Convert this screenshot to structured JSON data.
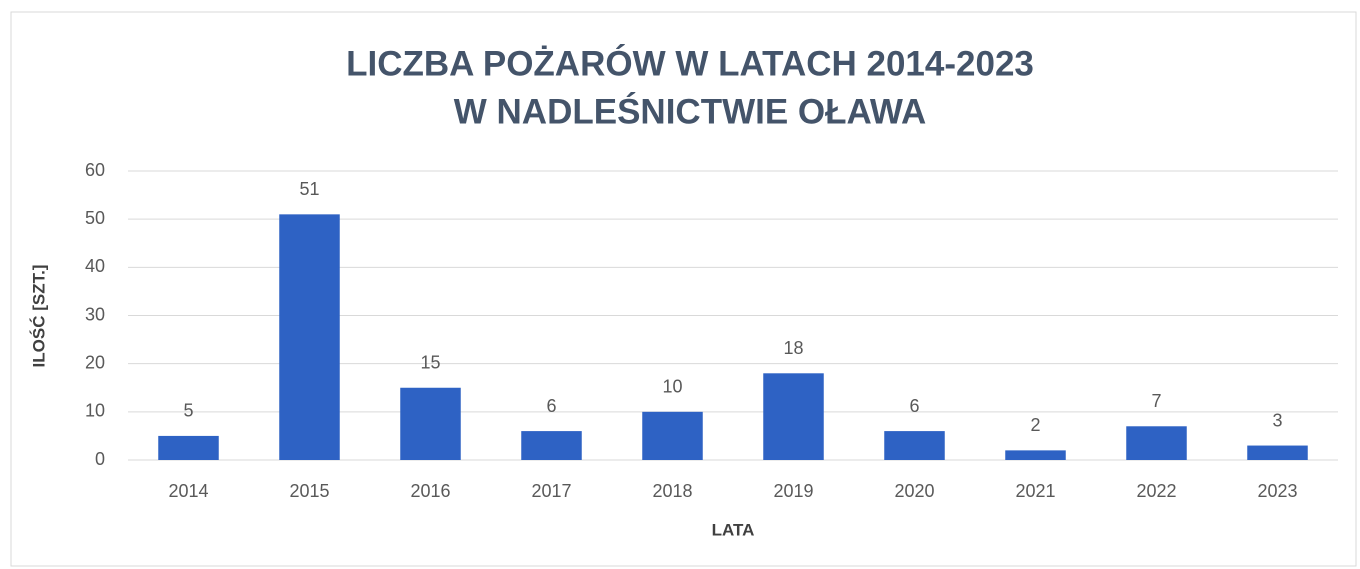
{
  "chart_data": {
    "type": "bar",
    "title": [
      "LICZBA POŻARÓW W LATACH 2014-2023",
      "W NADLEŚNICTWIE OŁAWA"
    ],
    "x_label": "LATA",
    "y_label": "ILOŚĆ [SZT.]",
    "categories": [
      "2014",
      "2015",
      "2016",
      "2017",
      "2018",
      "2019",
      "2020",
      "2021",
      "2022",
      "2023"
    ],
    "values": [
      5,
      51,
      15,
      6,
      10,
      18,
      6,
      2,
      7,
      3
    ],
    "color": "#2e62c4",
    "ylim": [
      0,
      60
    ],
    "yticks": [
      0,
      10,
      20,
      30,
      40,
      50,
      60
    ],
    "grid": true
  }
}
